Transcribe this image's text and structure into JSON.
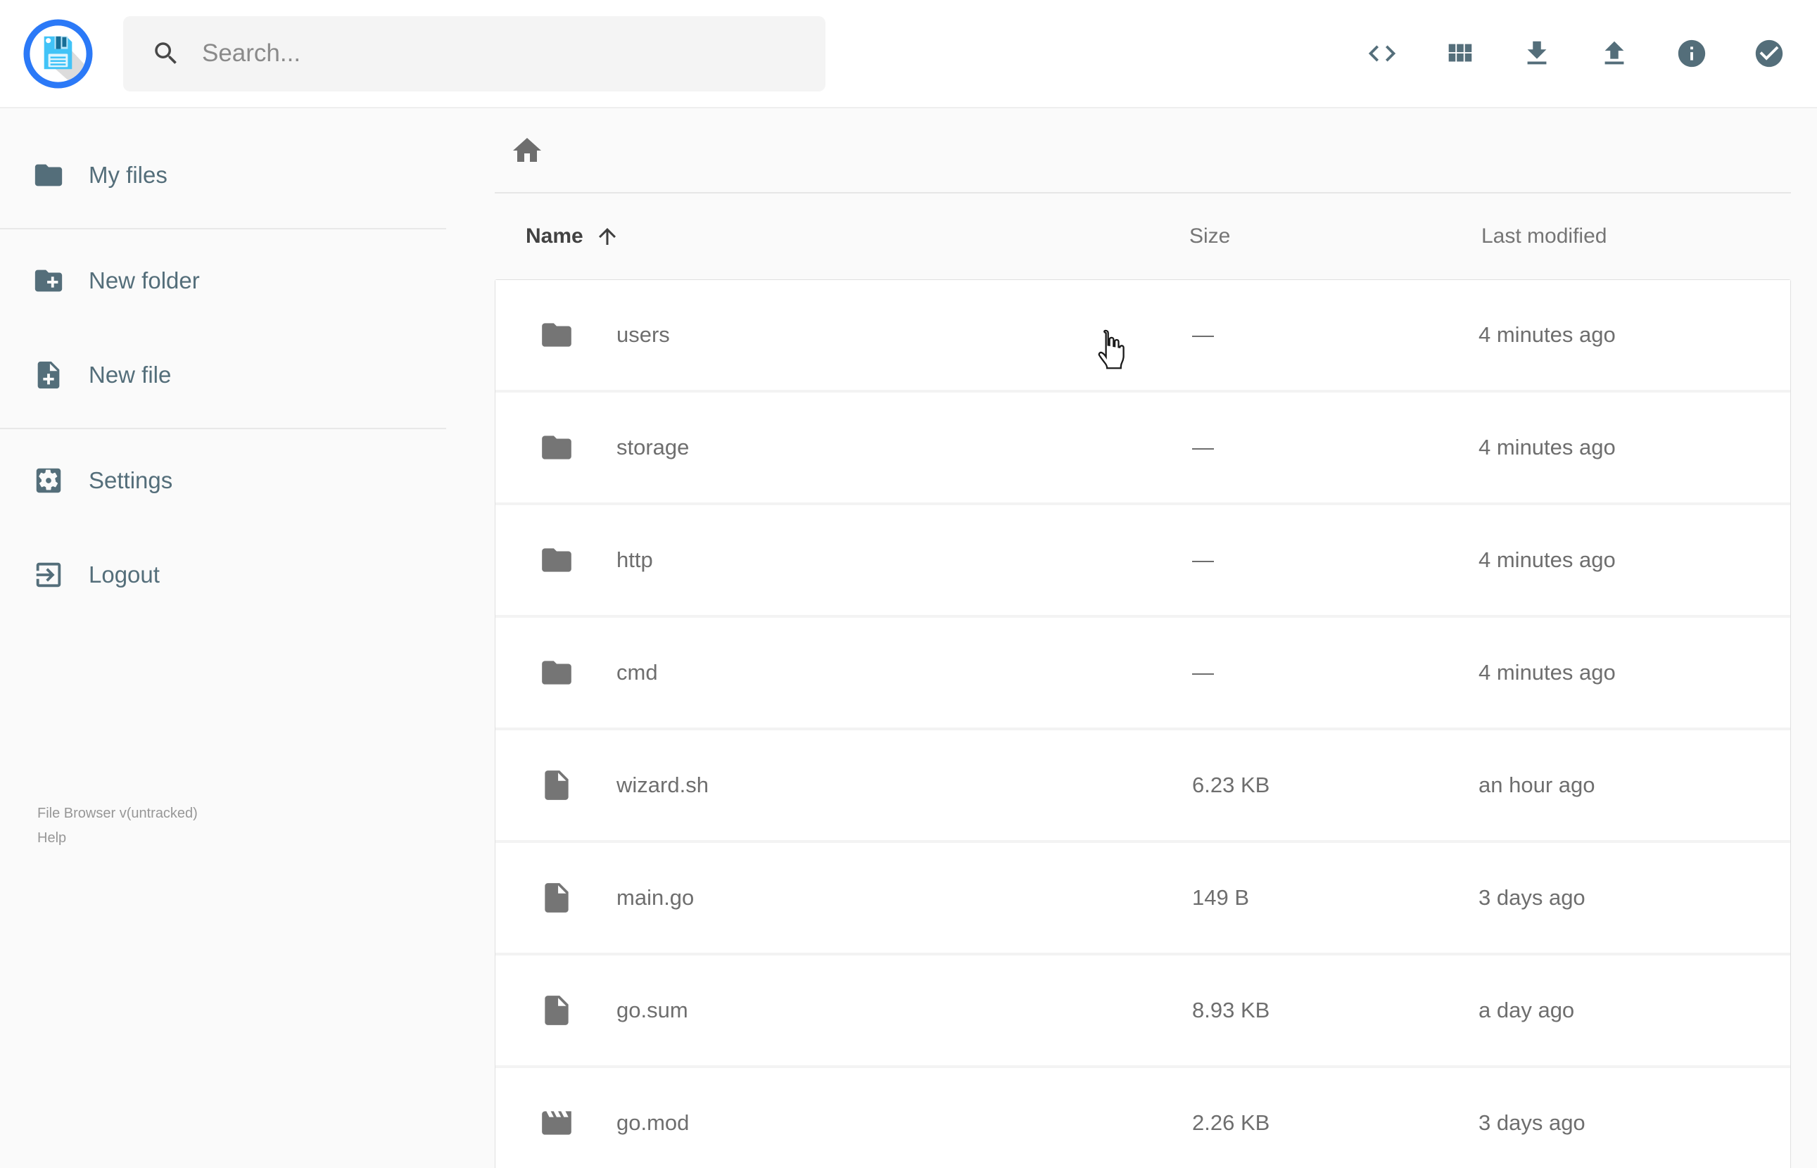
{
  "header": {
    "search": {
      "placeholder": "Search...",
      "icon": "search-icon"
    },
    "actions": [
      {
        "id": "shell",
        "icon": "code-icon"
      },
      {
        "id": "switch-view",
        "icon": "grid-view-icon"
      },
      {
        "id": "download",
        "icon": "download-icon"
      },
      {
        "id": "upload",
        "icon": "upload-icon"
      },
      {
        "id": "info",
        "icon": "info-icon"
      },
      {
        "id": "select",
        "icon": "check-circle-icon"
      }
    ],
    "logo_icon": "floppy-disk-logo"
  },
  "sidebar": {
    "items": [
      {
        "label": "My files",
        "icon": "folder-icon"
      },
      {
        "label": "New folder",
        "icon": "new-folder-icon"
      },
      {
        "label": "New file",
        "icon": "new-file-icon"
      },
      {
        "label": "Settings",
        "icon": "settings-icon"
      },
      {
        "label": "Logout",
        "icon": "logout-icon"
      }
    ],
    "footer": {
      "version": "File Browser v(untracked)",
      "help": "Help"
    }
  },
  "breadcrumb": {
    "home_icon": "home-icon"
  },
  "listing": {
    "columns": {
      "name": "Name",
      "size": "Size",
      "modified": "Last modified"
    },
    "sort": {
      "column": "Name",
      "direction": "ascending",
      "icon": "arrow-up-icon"
    },
    "rows": [
      {
        "name": "users",
        "type": "folder",
        "size": "—",
        "modified": "4 minutes ago"
      },
      {
        "name": "storage",
        "type": "folder",
        "size": "—",
        "modified": "4 minutes ago"
      },
      {
        "name": "http",
        "type": "folder",
        "size": "—",
        "modified": "4 minutes ago"
      },
      {
        "name": "cmd",
        "type": "folder",
        "size": "—",
        "modified": "4 minutes ago"
      },
      {
        "name": "wizard.sh",
        "type": "file",
        "size": "6.23 KB",
        "modified": "an hour ago"
      },
      {
        "name": "main.go",
        "type": "file",
        "size": "149 B",
        "modified": "3 days ago"
      },
      {
        "name": "go.sum",
        "type": "file",
        "size": "8.93 KB",
        "modified": "a day ago"
      },
      {
        "name": "go.mod",
        "type": "movie",
        "size": "2.26 KB",
        "modified": "3 days ago"
      }
    ]
  },
  "colors": {
    "accent_slate": "#546e7a",
    "row_text": "#6e6e6e",
    "page_bg": "#fafafa",
    "logo_ring_blue": "#2b79f7",
    "logo_floppy_blue": "#41c3f7"
  }
}
